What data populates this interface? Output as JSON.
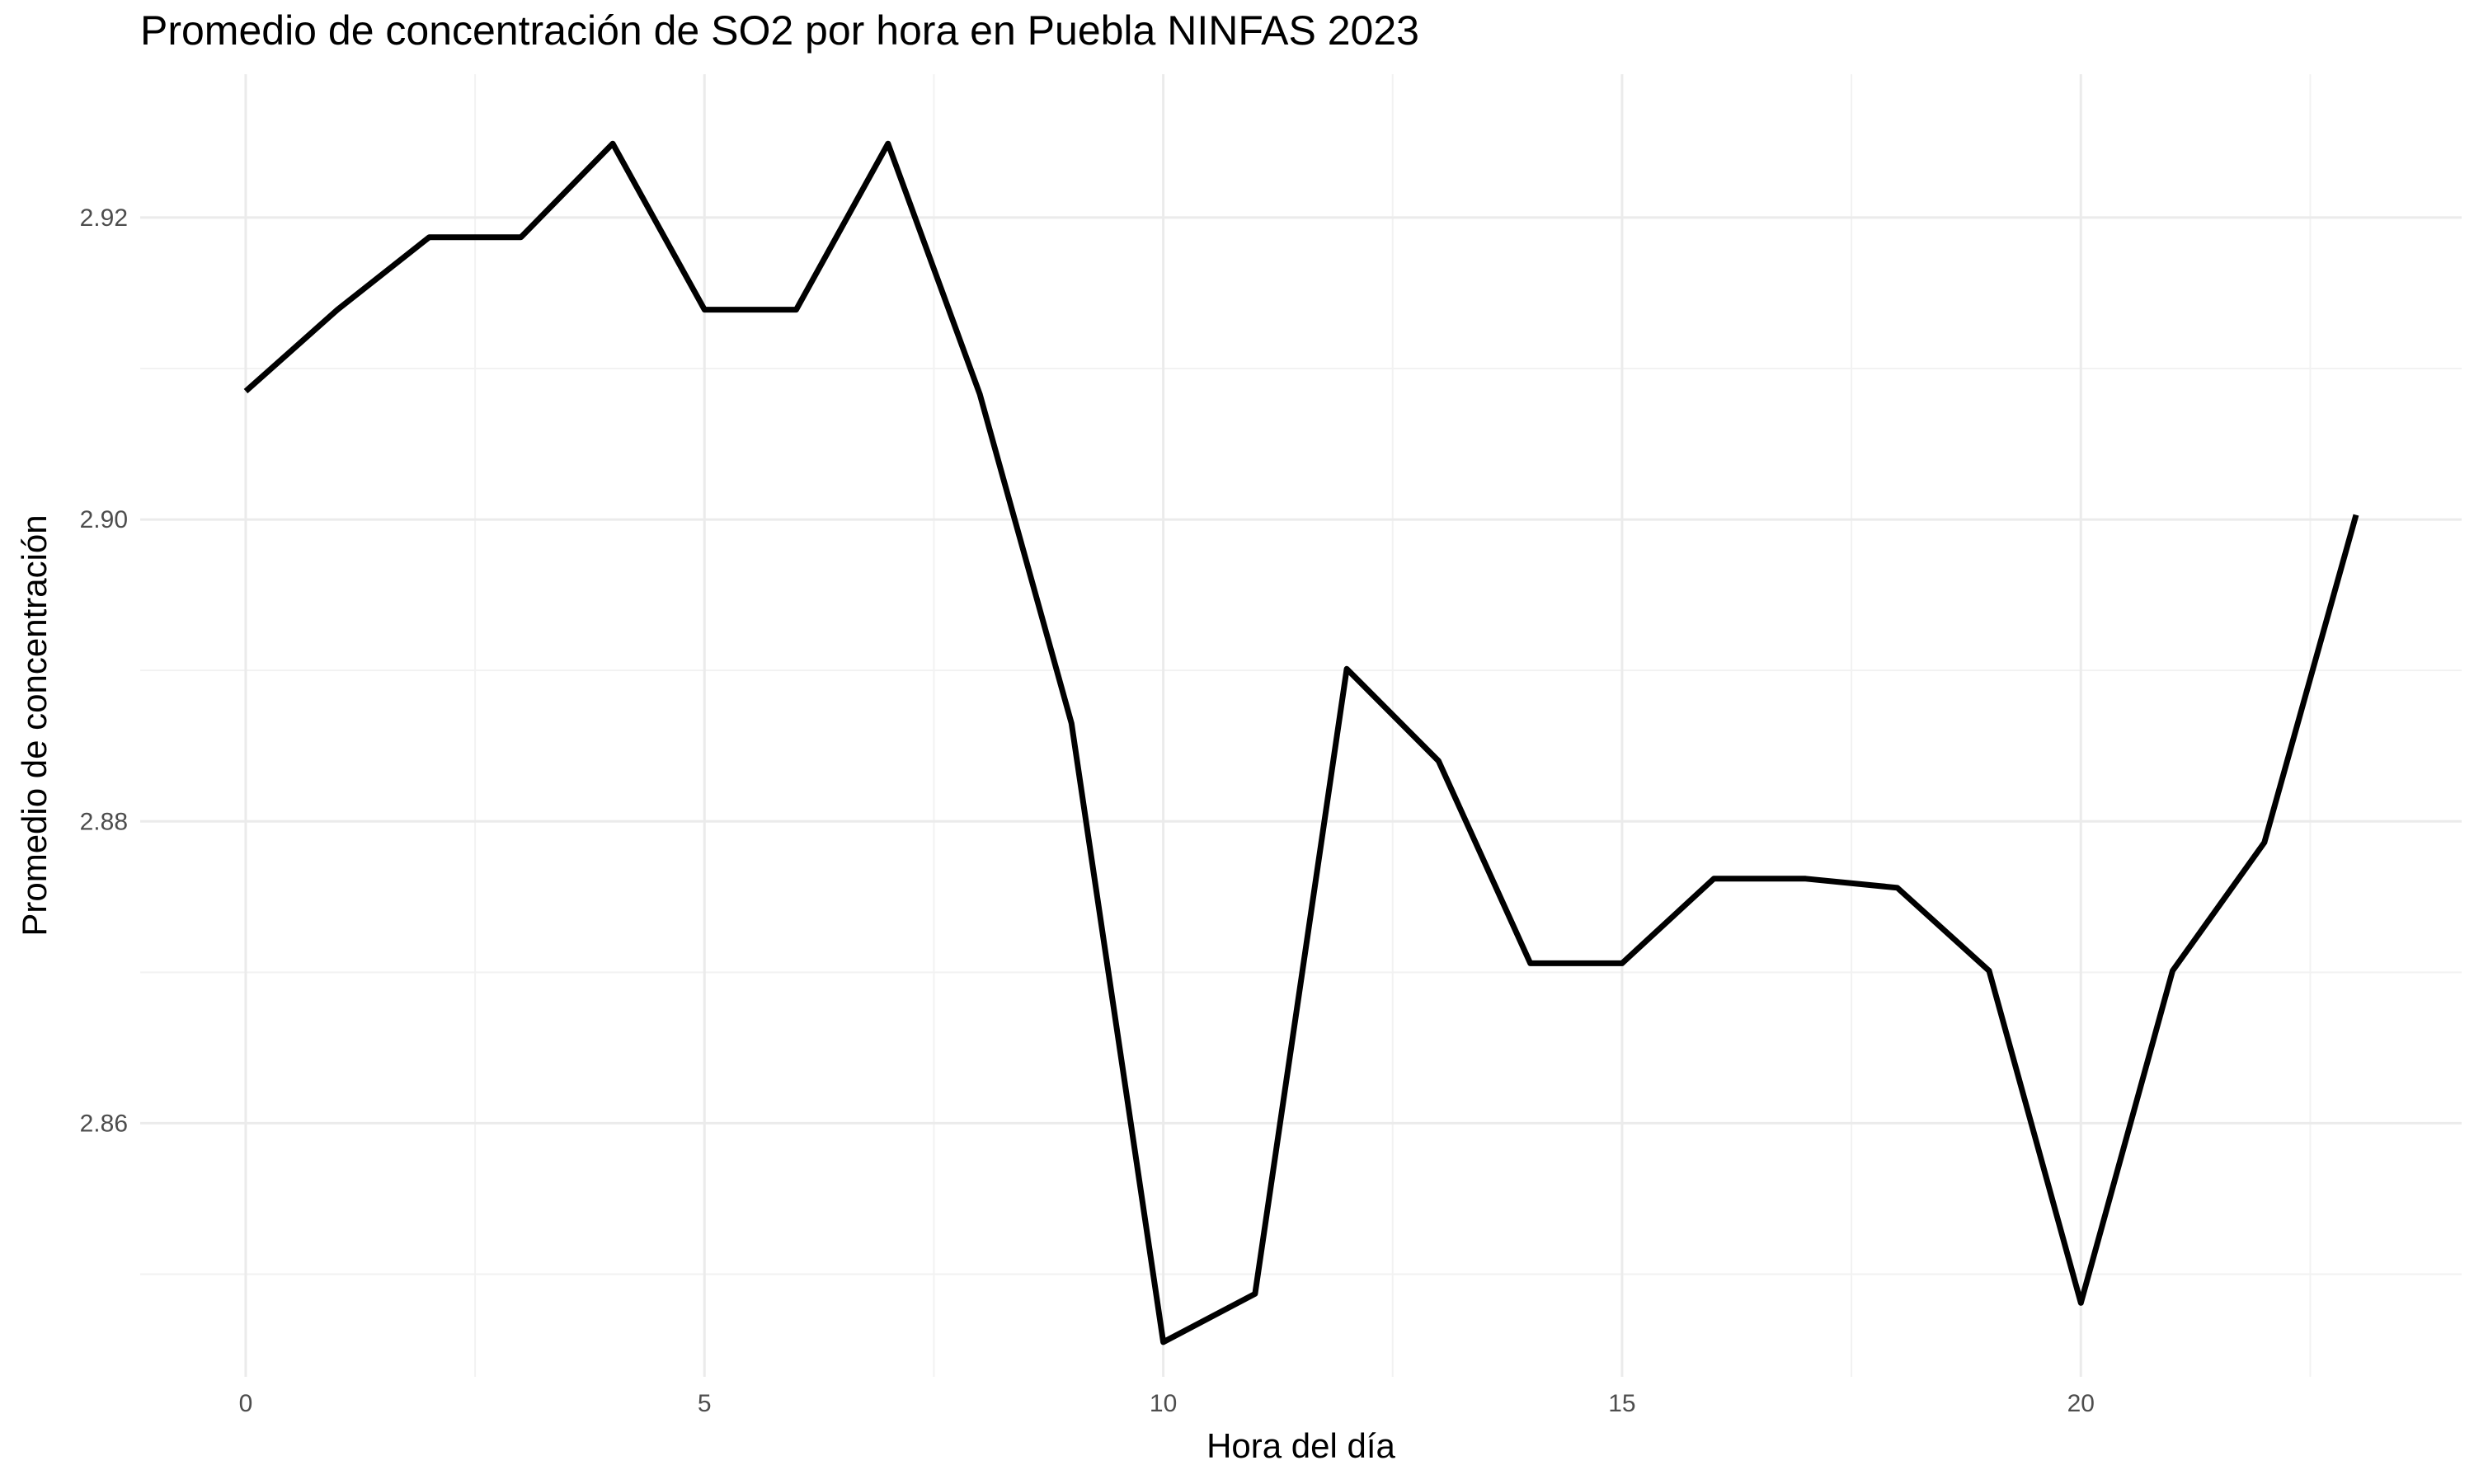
{
  "chart_data": {
    "type": "line",
    "title": "Promedio de concentración de SO2 por hora en Puebla NINFAS 2023",
    "xlabel": "Hora del día",
    "ylabel": "Promedio de concentración",
    "xlim": [
      -1.15,
      24.15
    ],
    "ylim": [
      2.8432,
      2.9295
    ],
    "x_ticks": [
      0,
      5,
      10,
      15,
      20
    ],
    "y_ticks": [
      2.86,
      2.88,
      2.9,
      2.92
    ],
    "grid": true,
    "line_color": "#000000",
    "series": [
      {
        "x": [
          0,
          1,
          2,
          3,
          4,
          5,
          6,
          7,
          8,
          9,
          10,
          11,
          12,
          13,
          14,
          15,
          16,
          17,
          18,
          19,
          20,
          21,
          22,
          23
        ],
        "values": [
          2.9085,
          2.9139,
          2.9187,
          2.9187,
          2.9249,
          2.9139,
          2.9139,
          2.9249,
          2.9083,
          2.8865,
          2.8455,
          2.8487,
          2.8901,
          2.884,
          2.8706,
          2.8706,
          2.8762,
          2.8762,
          2.8756,
          2.8701,
          2.8481,
          2.8701,
          2.8786,
          2.9003
        ]
      }
    ]
  }
}
